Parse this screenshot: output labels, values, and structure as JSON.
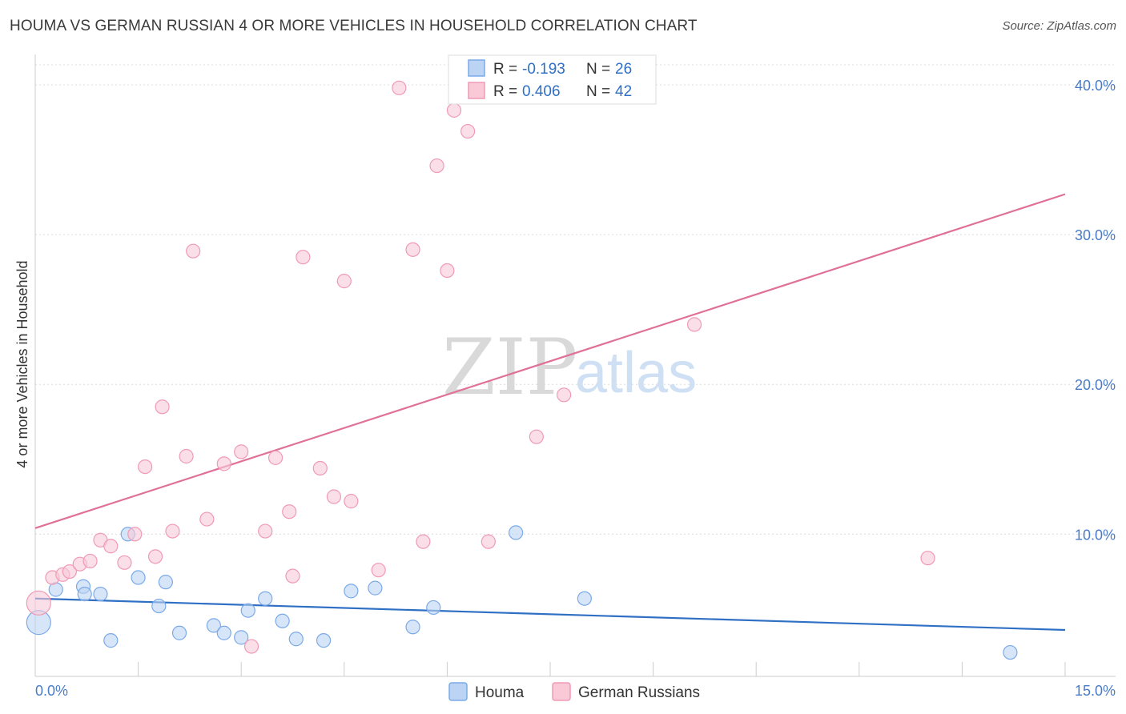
{
  "title": "HOUMA VS GERMAN RUSSIAN 4 OR MORE VEHICLES IN HOUSEHOLD CORRELATION CHART",
  "source": "Source: ZipAtlas.com",
  "watermark": {
    "part1": "ZIP",
    "part2": "atlas"
  },
  "chart_data": {
    "type": "scatter",
    "title": "HOUMA VS GERMAN RUSSIAN 4 OR MORE VEHICLES IN HOUSEHOLD CORRELATION CHART",
    "xlabel": "",
    "ylabel": "4 or more Vehicles in Household",
    "xlim": [
      0,
      15
    ],
    "ylim": [
      0.5,
      41.5
    ],
    "x_tick_labels": [
      "0.0%",
      "15.0%"
    ],
    "y_ticks": [
      10,
      20,
      30,
      40
    ],
    "y_tick_labels": [
      "10.0%",
      "20.0%",
      "30.0%",
      "40.0%"
    ],
    "grid": true,
    "legend_position": "top-center",
    "series": [
      {
        "name": "Houma",
        "color": "#7aaae8",
        "fill": "#bcd4f4",
        "line_color": "#2f6fc4",
        "R": "-0.193",
        "N": "26",
        "trend": [
          [
            0,
            5.7
          ],
          [
            15,
            3.6
          ]
        ],
        "points": [
          [
            0.05,
            4.1
          ],
          [
            0.3,
            6.3
          ],
          [
            0.7,
            6.5
          ],
          [
            0.72,
            6.0
          ],
          [
            0.95,
            6.0
          ],
          [
            1.1,
            2.9
          ],
          [
            1.35,
            10.0
          ],
          [
            1.5,
            7.1
          ],
          [
            1.8,
            5.2
          ],
          [
            1.9,
            6.8
          ],
          [
            2.1,
            3.4
          ],
          [
            2.6,
            3.9
          ],
          [
            2.75,
            3.4
          ],
          [
            3.0,
            3.1
          ],
          [
            3.1,
            4.9
          ],
          [
            3.35,
            5.7
          ],
          [
            3.6,
            4.2
          ],
          [
            3.8,
            3.0
          ],
          [
            4.2,
            2.9
          ],
          [
            4.6,
            6.2
          ],
          [
            4.95,
            6.4
          ],
          [
            5.5,
            3.8
          ],
          [
            5.8,
            5.1
          ],
          [
            7.0,
            10.1
          ],
          [
            8.0,
            5.7
          ],
          [
            14.2,
            2.1
          ]
        ]
      },
      {
        "name": "German Russians",
        "color": "#f09ab5",
        "fill": "#f9c9d8",
        "line_color": "#e07098",
        "R": "0.406",
        "N": "42",
        "trend": [
          [
            0,
            10.4
          ],
          [
            15,
            32.7
          ]
        ],
        "points": [
          [
            0.05,
            5.4
          ],
          [
            0.25,
            7.1
          ],
          [
            0.4,
            7.3
          ],
          [
            0.5,
            7.5
          ],
          [
            0.65,
            8.0
          ],
          [
            0.8,
            8.2
          ],
          [
            0.95,
            9.6
          ],
          [
            1.1,
            9.2
          ],
          [
            1.3,
            8.1
          ],
          [
            1.45,
            10.0
          ],
          [
            1.6,
            14.5
          ],
          [
            1.75,
            8.5
          ],
          [
            1.85,
            18.5
          ],
          [
            2.0,
            10.2
          ],
          [
            2.2,
            15.2
          ],
          [
            2.3,
            28.9
          ],
          [
            2.5,
            11.0
          ],
          [
            2.75,
            14.7
          ],
          [
            3.0,
            15.5
          ],
          [
            3.15,
            2.5
          ],
          [
            3.35,
            10.2
          ],
          [
            3.5,
            15.1
          ],
          [
            3.7,
            11.5
          ],
          [
            3.75,
            7.2
          ],
          [
            3.9,
            28.5
          ],
          [
            4.15,
            14.4
          ],
          [
            4.35,
            12.5
          ],
          [
            4.5,
            26.9
          ],
          [
            4.6,
            12.2
          ],
          [
            5.0,
            7.6
          ],
          [
            5.3,
            39.8
          ],
          [
            5.5,
            29.0
          ],
          [
            5.65,
            9.5
          ],
          [
            5.85,
            34.6
          ],
          [
            6.0,
            27.6
          ],
          [
            6.1,
            38.3
          ],
          [
            6.3,
            36.9
          ],
          [
            6.6,
            9.5
          ],
          [
            7.3,
            16.5
          ],
          [
            7.7,
            19.3
          ],
          [
            9.6,
            24.0
          ],
          [
            13.0,
            8.4
          ]
        ]
      }
    ]
  },
  "legend": {
    "r_label": "R =",
    "n_label": "N =",
    "houma_r": "-0.193",
    "houma_n": "26",
    "gr_r": "0.406",
    "gr_n": "42"
  },
  "bottom_legend": {
    "houma": "Houma",
    "german_russians": "German Russians"
  }
}
